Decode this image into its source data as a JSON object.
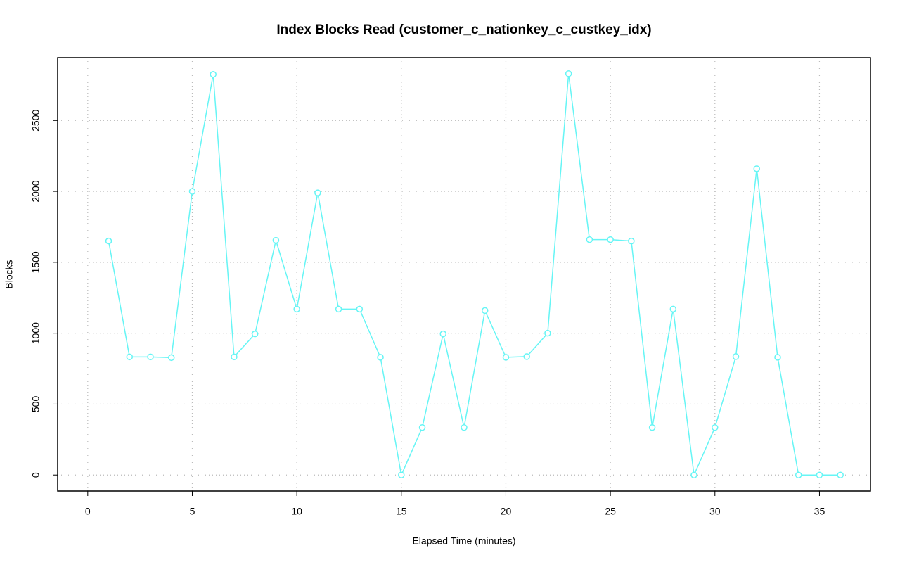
{
  "chart_data": {
    "type": "line",
    "title": "Index Blocks Read (customer_c_nationkey_c_custkey_idx)",
    "x_label": "Elapsed Time (minutes)",
    "y_label": "Blocks",
    "x": [
      1,
      2,
      3,
      4,
      5,
      6,
      7,
      8,
      9,
      10,
      11,
      12,
      13,
      14,
      15,
      16,
      17,
      18,
      19,
      20,
      21,
      22,
      23,
      24,
      25,
      26,
      27,
      28,
      29,
      30,
      31,
      32,
      33,
      34,
      35,
      36
    ],
    "series": [
      {
        "name": "Blocks",
        "color": "#66f5f5",
        "values": [
          1650,
          833,
          833,
          828,
          2000,
          2825,
          833,
          995,
          1655,
          1170,
          1990,
          1170,
          1170,
          830,
          0,
          335,
          995,
          335,
          1160,
          830,
          835,
          1000,
          2830,
          1660,
          1660,
          1650,
          335,
          1170,
          0,
          335,
          835,
          2160,
          830,
          0,
          0,
          0
        ]
      }
    ],
    "xlim": [
      -1.44,
      37.44
    ],
    "xticks": [
      0,
      5,
      10,
      15,
      20,
      25,
      30,
      35
    ],
    "ylim": [
      -113,
      2943
    ],
    "yticks": [
      0,
      500,
      1000,
      1500,
      2000,
      2500
    ],
    "grid": true
  }
}
